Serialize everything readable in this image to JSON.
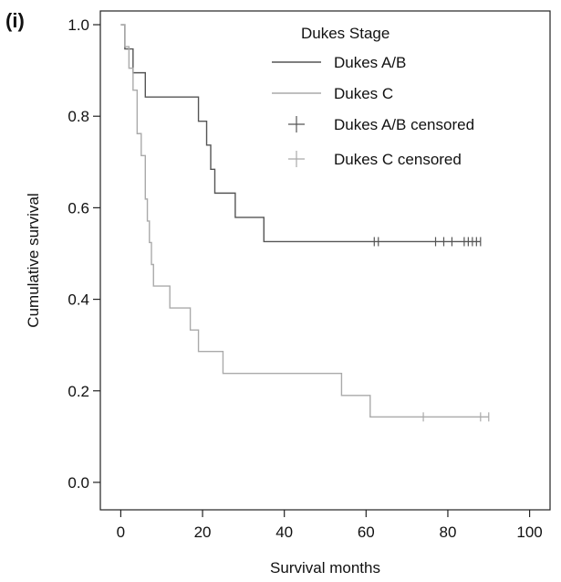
{
  "panel_label": "(i)",
  "chart_data": {
    "type": "line",
    "subtype": "kaplan-meier-step",
    "xlabel": "Survival months",
    "ylabel": "Cumulative survival",
    "xlim": [
      -5,
      105
    ],
    "ylim": [
      -0.06,
      1.03
    ],
    "xticks": [
      0,
      20,
      40,
      60,
      80,
      100
    ],
    "yticks": [
      0.0,
      0.2,
      0.4,
      0.6,
      0.8,
      1.0
    ],
    "xtick_labels": [
      "0",
      "20",
      "40",
      "60",
      "80",
      "100"
    ],
    "ytick_labels": [
      "0.0",
      "0.2",
      "0.4",
      "0.6",
      "0.8",
      "1.0"
    ],
    "grid": false,
    "legend": {
      "title": "Dukes Stage",
      "placement": "top-right",
      "entries": [
        {
          "label": "Dukes A/B",
          "kind": "line",
          "series": "ab"
        },
        {
          "label": "Dukes C",
          "kind": "line",
          "series": "c"
        },
        {
          "label": "Dukes A/B censored",
          "kind": "censor",
          "series": "ab"
        },
        {
          "label": "Dukes C censored",
          "kind": "censor",
          "series": "c"
        }
      ]
    },
    "series": [
      {
        "id": "ab",
        "name": "Dukes A/B",
        "color": "#555555",
        "steps": [
          [
            0,
            1.0
          ],
          [
            1,
            0.947
          ],
          [
            3,
            0.895
          ],
          [
            6,
            0.842
          ],
          [
            19,
            0.789
          ],
          [
            21,
            0.737
          ],
          [
            22,
            0.684
          ],
          [
            23,
            0.632
          ],
          [
            28,
            0.579
          ],
          [
            35,
            0.526
          ],
          [
            88,
            0.526
          ]
        ],
        "censored": [
          62,
          63,
          77,
          79,
          81,
          84,
          85,
          86,
          87,
          88
        ]
      },
      {
        "id": "c",
        "name": "Dukes C",
        "color": "#aaaaaa",
        "steps": [
          [
            0,
            1.0
          ],
          [
            1,
            0.952
          ],
          [
            2,
            0.905
          ],
          [
            3,
            0.857
          ],
          [
            4,
            0.762
          ],
          [
            5,
            0.714
          ],
          [
            6,
            0.619
          ],
          [
            6.5,
            0.571
          ],
          [
            7,
            0.524
          ],
          [
            7.5,
            0.476
          ],
          [
            8,
            0.429
          ],
          [
            12,
            0.381
          ],
          [
            17,
            0.333
          ],
          [
            19,
            0.286
          ],
          [
            25,
            0.238
          ],
          [
            54,
            0.19
          ],
          [
            61,
            0.143
          ],
          [
            90,
            0.143
          ]
        ],
        "censored": [
          74,
          88,
          90
        ]
      }
    ]
  }
}
